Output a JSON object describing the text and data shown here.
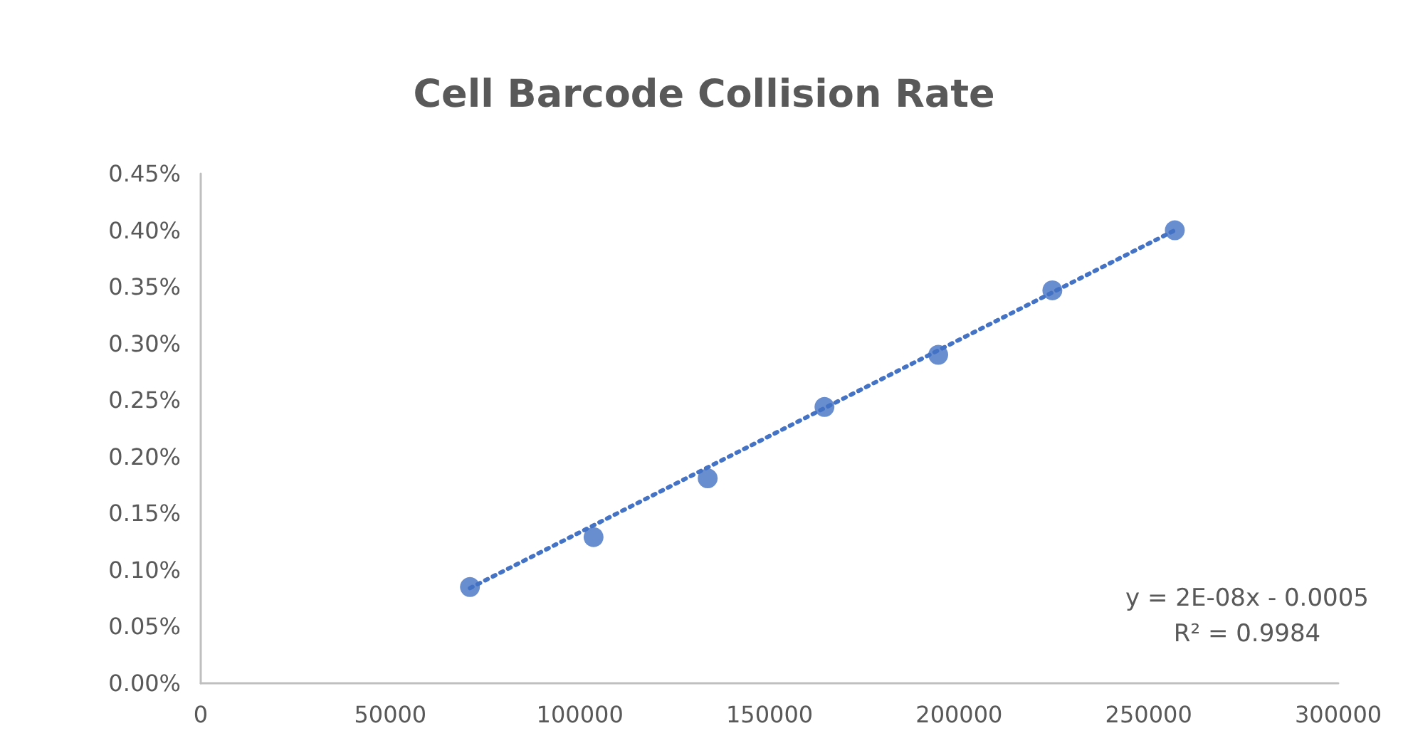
{
  "chart_data": {
    "type": "scatter",
    "title": "Cell Barcode Collision Rate",
    "series": [
      {
        "color": "#4472c4",
        "marker": "circle",
        "x": [
          71000,
          103600,
          133700,
          164500,
          194500,
          224600,
          256900
        ],
        "values": [
          0.085,
          0.129,
          0.181,
          0.244,
          0.29,
          0.347,
          0.4
        ]
      },
      {
        "type": "line",
        "color": "#4472c4",
        "marker": "none",
        "line_style": "dotted",
        "x": [
          71000,
          256900
        ],
        "values": [
          0.084,
          0.4
        ]
      }
    ],
    "xlim": [
      0,
      300000
    ],
    "xticks": [
      0,
      50000,
      100000,
      150000,
      200000,
      250000,
      300000
    ],
    "ylim": [
      0,
      0.45
    ],
    "yticks": [
      {
        "value": 0,
        "label": "0.00%"
      },
      {
        "value": 0.05,
        "label": "0.05%"
      },
      {
        "value": 0.1,
        "label": "0.10%"
      },
      {
        "value": 0.15,
        "label": "0.15%"
      },
      {
        "value": 0.2,
        "label": "0.20%"
      },
      {
        "value": 0.25,
        "label": "0.25%"
      },
      {
        "value": 0.3,
        "label": "0.30%"
      },
      {
        "value": 0.35,
        "label": "0.35%"
      },
      {
        "value": 0.4,
        "label": "0.40%"
      },
      {
        "value": 0.45,
        "label": "0.45%"
      }
    ],
    "grid": false,
    "annotations": [
      "y = 2E-08x - 0.0005",
      "R² = 0.9984"
    ]
  }
}
